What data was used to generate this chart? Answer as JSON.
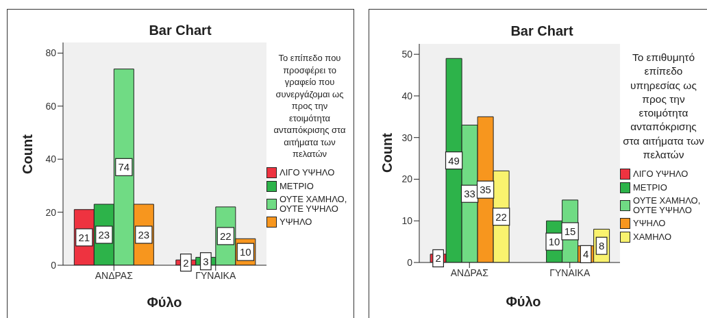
{
  "chart_data": [
    {
      "type": "bar",
      "title": "Bar Chart",
      "xlabel": "Φύλο",
      "ylabel": "Count",
      "legend_title": "Το επίπεδο που προσφέρει το γραφείο που συνεργάζομαι ως προς την ετοιμότητα ανταπόκρισης στα αιτήματα των πελατών",
      "legend": "right",
      "data_labels": true,
      "categories": [
        "ΑΝΔΡΑΣ",
        "ΓΥΝΑΙΚΑ"
      ],
      "ylim": [
        0,
        84
      ],
      "yticks": [
        0,
        20,
        40,
        60,
        80
      ],
      "series": [
        {
          "name": "ΛΙΓΟ ΥΨΗΛΟ",
          "color": "#ee3340",
          "values": [
            21,
            2
          ]
        },
        {
          "name": "ΜΕΤΡΙΟ",
          "color": "#2db34a",
          "values": [
            23,
            3
          ]
        },
        {
          "name": "ΟΥΤΕ ΧΑΜΗΛΟ, ΟΥΤΕ ΥΨΗΛΟ",
          "color": "#70db84",
          "values": [
            74,
            22
          ]
        },
        {
          "name": "ΥΨΗΛΟ",
          "color": "#f7961e",
          "values": [
            23,
            10
          ]
        }
      ]
    },
    {
      "type": "bar",
      "title": "Bar Chart",
      "xlabel": "Φύλο",
      "ylabel": "Count",
      "legend_title": "Το επιθυμητό επίπεδο υπηρεσίας ως προς την ετοιμότητα ανταπόκρισης στα αιτήματα των πελατών",
      "legend": "right",
      "data_labels": true,
      "categories": [
        "ΑΝΔΡΑΣ",
        "ΓΥΝΑΙΚΑ"
      ],
      "ylim": [
        0,
        52.5
      ],
      "yticks": [
        0,
        10,
        20,
        30,
        40,
        50
      ],
      "series": [
        {
          "name": "ΛΙΓΟ ΥΨΗΛΟ",
          "color": "#ee3340",
          "values": [
            2,
            null
          ]
        },
        {
          "name": "ΜΕΤΡΙΟ",
          "color": "#2db34a",
          "values": [
            49,
            10
          ]
        },
        {
          "name": "ΟΥΤΕ ΧΑΜΗΛΟ, ΟΥΤΕ ΥΨΗΛΟ",
          "color": "#70db84",
          "values": [
            33,
            15
          ]
        },
        {
          "name": "ΥΨΗΛΟ",
          "color": "#f7961e",
          "values": [
            35,
            4
          ]
        },
        {
          "name": "ΧΑΜΗΛΟ",
          "color": "#f9f26e",
          "values": [
            22,
            8
          ]
        }
      ]
    }
  ]
}
